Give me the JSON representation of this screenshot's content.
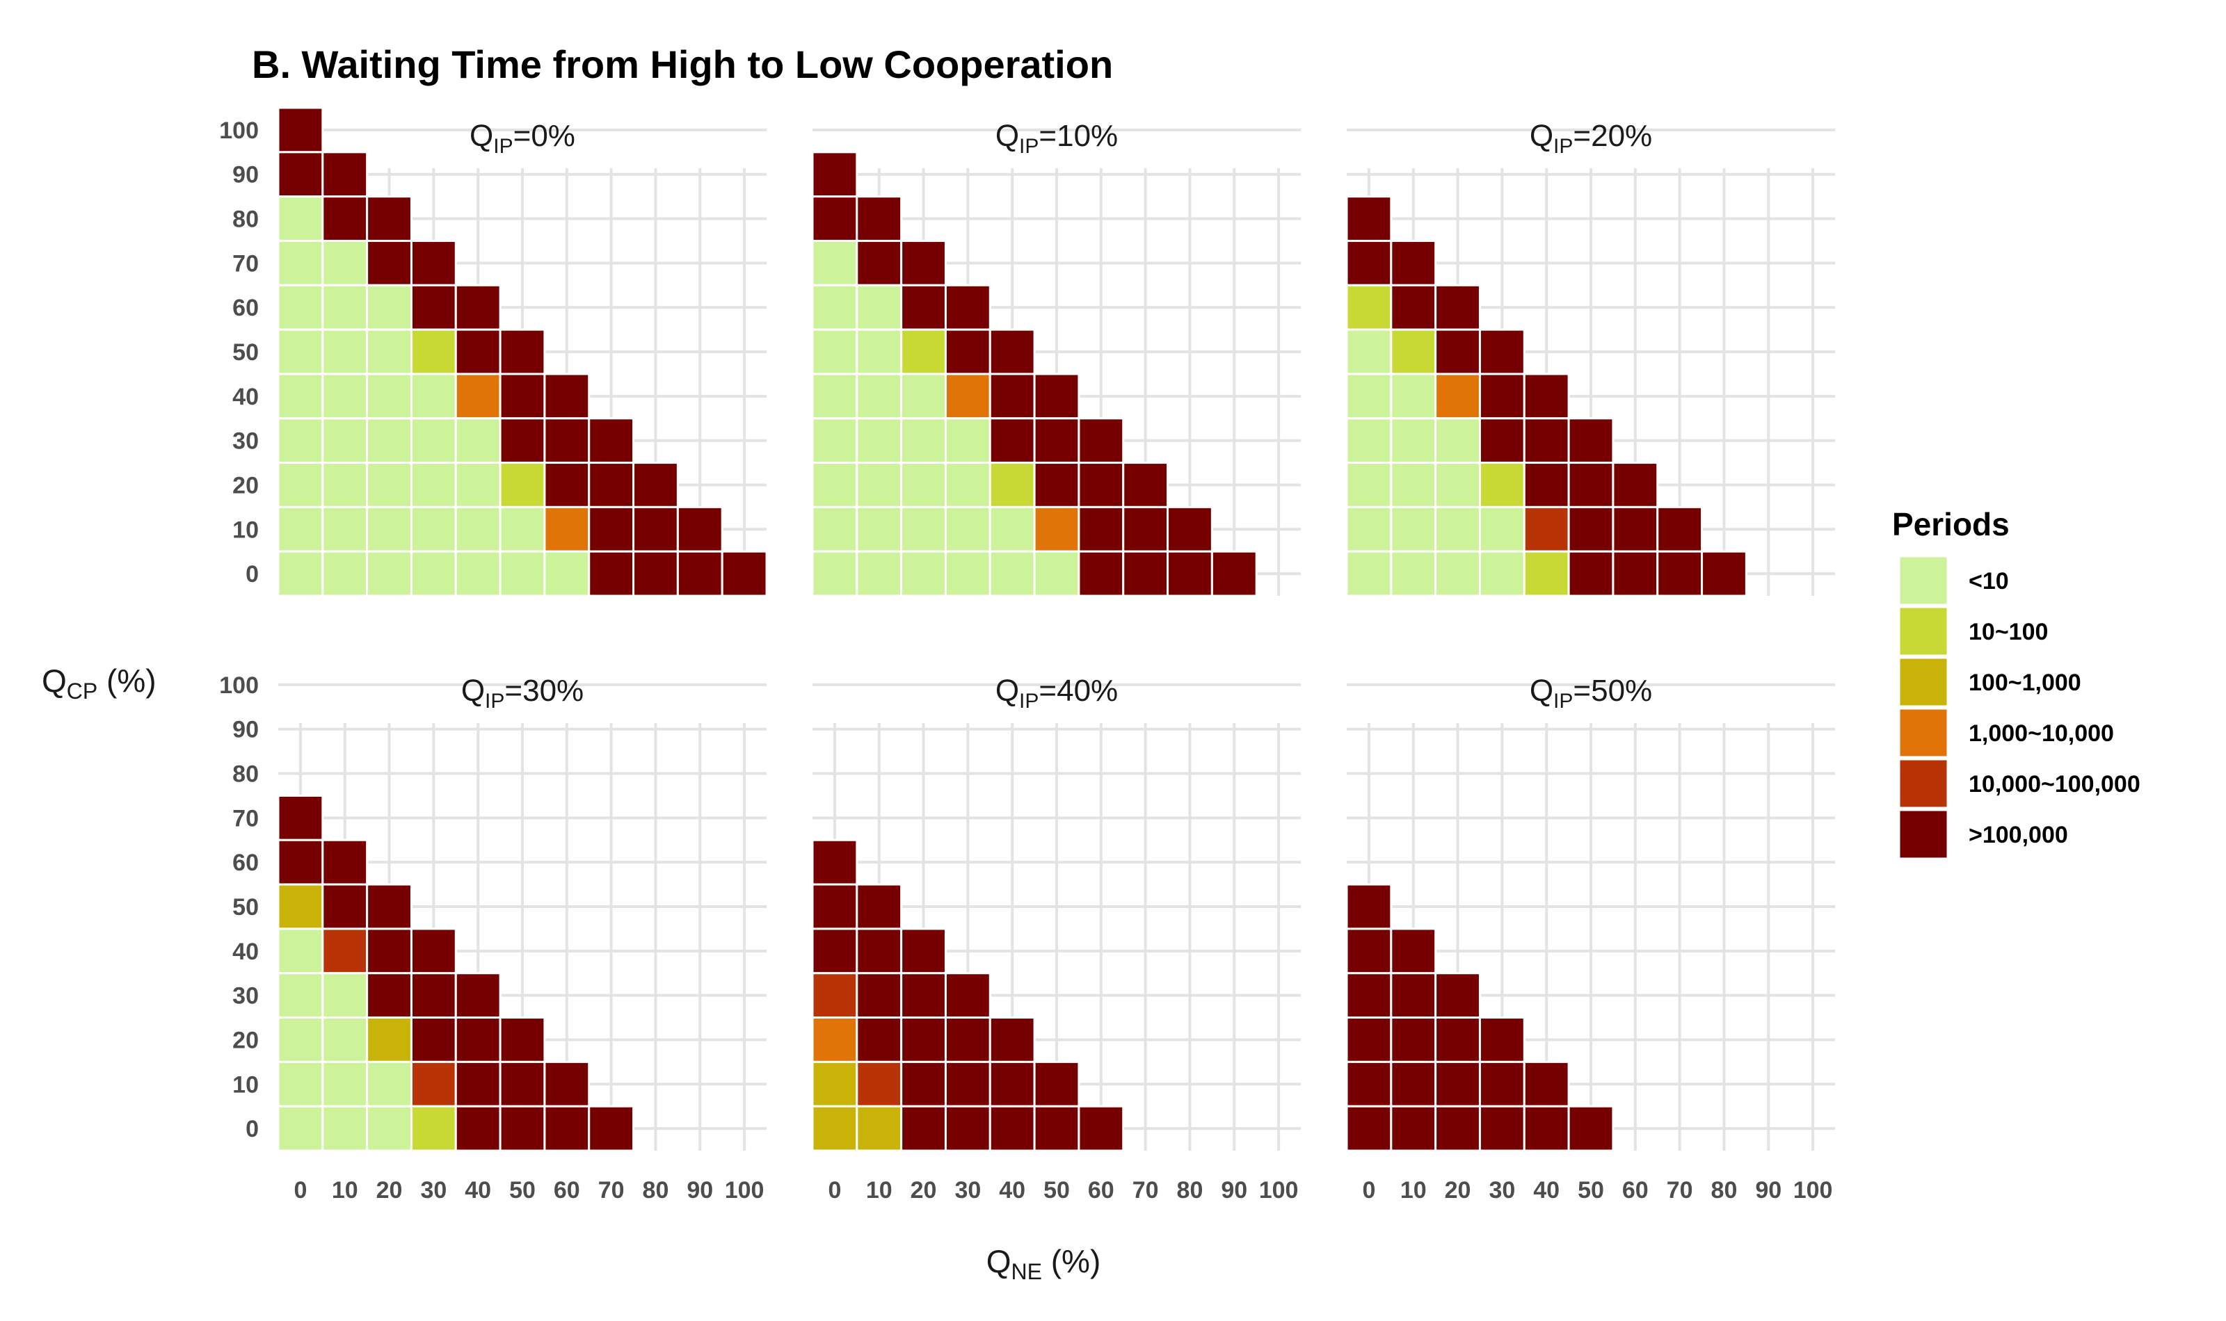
{
  "chart_data": {
    "type": "heatmap",
    "title": "B. Waiting Time from High to Low Cooperation",
    "xlabel": {
      "main": "Q",
      "sub": "NE",
      "suffix": " (%)"
    },
    "ylabel": {
      "main": "Q",
      "sub": "CP",
      "suffix": " (%)"
    },
    "x_ticks": [
      0,
      10,
      20,
      30,
      40,
      50,
      60,
      70,
      80,
      90,
      100
    ],
    "x_tick_labels": [
      "0",
      "10",
      "20",
      "30",
      "40",
      "50",
      "60",
      "70",
      "80",
      "90",
      "100"
    ],
    "y_ticks": [
      0,
      10,
      20,
      30,
      40,
      50,
      60,
      70,
      80,
      90,
      100
    ],
    "y_tick_labels": [
      "0",
      "10",
      "20",
      "30",
      "40",
      "50",
      "60",
      "70",
      "80",
      "90",
      "100"
    ],
    "xlim": [
      -5,
      105
    ],
    "ylim": [
      -5,
      105
    ],
    "grid": true,
    "legend": {
      "title": "Periods",
      "position": "right",
      "categories": [
        {
          "label": "<10",
          "color": "#ccf29a"
        },
        {
          "label": "10~100",
          "color": "#c8d834"
        },
        {
          "label": "100~1,000",
          "color": "#c9b309"
        },
        {
          "label": "1,000~10,000",
          "color": "#e07408"
        },
        {
          "label": "10,000~100,000",
          "color": "#b83406"
        },
        {
          "label": ">100,000",
          "color": "#760000"
        }
      ]
    },
    "facets": [
      {
        "title": {
          "main": "Q",
          "sub": "IP",
          "suffix": "=0%"
        },
        "rows": [
          {
            "y": 100,
            "cats": [
              5
            ]
          },
          {
            "y": 90,
            "cats": [
              5,
              5
            ]
          },
          {
            "y": 80,
            "cats": [
              0,
              5,
              5
            ]
          },
          {
            "y": 70,
            "cats": [
              0,
              0,
              5,
              5
            ]
          },
          {
            "y": 60,
            "cats": [
              0,
              0,
              0,
              5,
              5
            ]
          },
          {
            "y": 50,
            "cats": [
              0,
              0,
              0,
              1,
              5,
              5
            ]
          },
          {
            "y": 40,
            "cats": [
              0,
              0,
              0,
              0,
              3,
              5,
              5
            ]
          },
          {
            "y": 30,
            "cats": [
              0,
              0,
              0,
              0,
              0,
              5,
              5,
              5
            ]
          },
          {
            "y": 20,
            "cats": [
              0,
              0,
              0,
              0,
              0,
              1,
              5,
              5,
              5
            ]
          },
          {
            "y": 10,
            "cats": [
              0,
              0,
              0,
              0,
              0,
              0,
              3,
              5,
              5,
              5
            ]
          },
          {
            "y": 0,
            "cats": [
              0,
              0,
              0,
              0,
              0,
              0,
              0,
              5,
              5,
              5,
              5
            ]
          }
        ]
      },
      {
        "title": {
          "main": "Q",
          "sub": "IP",
          "suffix": "=10%"
        },
        "rows": [
          {
            "y": 90,
            "cats": [
              5
            ]
          },
          {
            "y": 80,
            "cats": [
              5,
              5
            ]
          },
          {
            "y": 70,
            "cats": [
              0,
              5,
              5
            ]
          },
          {
            "y": 60,
            "cats": [
              0,
              0,
              5,
              5
            ]
          },
          {
            "y": 50,
            "cats": [
              0,
              0,
              1,
              5,
              5
            ]
          },
          {
            "y": 40,
            "cats": [
              0,
              0,
              0,
              3,
              5,
              5
            ]
          },
          {
            "y": 30,
            "cats": [
              0,
              0,
              0,
              0,
              5,
              5,
              5
            ]
          },
          {
            "y": 20,
            "cats": [
              0,
              0,
              0,
              0,
              1,
              5,
              5,
              5
            ]
          },
          {
            "y": 10,
            "cats": [
              0,
              0,
              0,
              0,
              0,
              3,
              5,
              5,
              5
            ]
          },
          {
            "y": 0,
            "cats": [
              0,
              0,
              0,
              0,
              0,
              0,
              5,
              5,
              5,
              5
            ]
          }
        ]
      },
      {
        "title": {
          "main": "Q",
          "sub": "IP",
          "suffix": "=20%"
        },
        "rows": [
          {
            "y": 80,
            "cats": [
              5
            ]
          },
          {
            "y": 70,
            "cats": [
              5,
              5
            ]
          },
          {
            "y": 60,
            "cats": [
              1,
              5,
              5
            ]
          },
          {
            "y": 50,
            "cats": [
              0,
              1,
              5,
              5
            ]
          },
          {
            "y": 40,
            "cats": [
              0,
              0,
              3,
              5,
              5
            ]
          },
          {
            "y": 30,
            "cats": [
              0,
              0,
              0,
              5,
              5,
              5
            ]
          },
          {
            "y": 20,
            "cats": [
              0,
              0,
              0,
              1,
              5,
              5,
              5
            ]
          },
          {
            "y": 10,
            "cats": [
              0,
              0,
              0,
              0,
              4,
              5,
              5,
              5
            ]
          },
          {
            "y": 0,
            "cats": [
              0,
              0,
              0,
              0,
              1,
              5,
              5,
              5,
              5
            ]
          }
        ]
      },
      {
        "title": {
          "main": "Q",
          "sub": "IP",
          "suffix": "=30%"
        },
        "rows": [
          {
            "y": 70,
            "cats": [
              5
            ]
          },
          {
            "y": 60,
            "cats": [
              5,
              5
            ]
          },
          {
            "y": 50,
            "cats": [
              2,
              5,
              5
            ]
          },
          {
            "y": 40,
            "cats": [
              0,
              4,
              5,
              5
            ]
          },
          {
            "y": 30,
            "cats": [
              0,
              0,
              5,
              5,
              5
            ]
          },
          {
            "y": 20,
            "cats": [
              0,
              0,
              2,
              5,
              5,
              5
            ]
          },
          {
            "y": 10,
            "cats": [
              0,
              0,
              0,
              4,
              5,
              5,
              5
            ]
          },
          {
            "y": 0,
            "cats": [
              0,
              0,
              0,
              1,
              5,
              5,
              5,
              5
            ]
          }
        ]
      },
      {
        "title": {
          "main": "Q",
          "sub": "IP",
          "suffix": "=40%"
        },
        "rows": [
          {
            "y": 60,
            "cats": [
              5
            ]
          },
          {
            "y": 50,
            "cats": [
              5,
              5
            ]
          },
          {
            "y": 40,
            "cats": [
              5,
              5,
              5
            ]
          },
          {
            "y": 30,
            "cats": [
              4,
              5,
              5,
              5
            ]
          },
          {
            "y": 20,
            "cats": [
              3,
              5,
              5,
              5,
              5
            ]
          },
          {
            "y": 10,
            "cats": [
              2,
              4,
              5,
              5,
              5,
              5
            ]
          },
          {
            "y": 0,
            "cats": [
              2,
              2,
              5,
              5,
              5,
              5,
              5
            ]
          }
        ]
      },
      {
        "title": {
          "main": "Q",
          "sub": "IP",
          "suffix": "=50%"
        },
        "rows": [
          {
            "y": 50,
            "cats": [
              5
            ]
          },
          {
            "y": 40,
            "cats": [
              5,
              5
            ]
          },
          {
            "y": 30,
            "cats": [
              5,
              5,
              5
            ]
          },
          {
            "y": 20,
            "cats": [
              5,
              5,
              5,
              5
            ]
          },
          {
            "y": 10,
            "cats": [
              5,
              5,
              5,
              5,
              5
            ]
          },
          {
            "y": 0,
            "cats": [
              5,
              5,
              5,
              5,
              5,
              5
            ]
          }
        ]
      }
    ]
  }
}
